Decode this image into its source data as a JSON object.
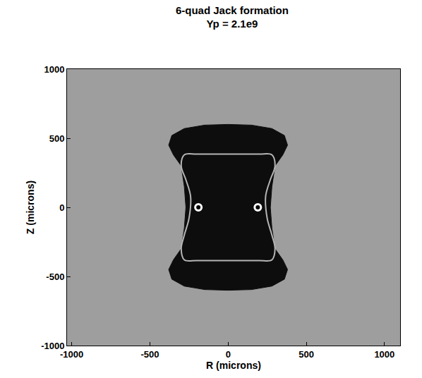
{
  "chart_data": {
    "type": "scatter",
    "title": "6-quad Jack formation",
    "subtitle": "Yp = 2.1e9",
    "x_label": "R (microns)",
    "y_label": "Z (microns)",
    "xlim": [
      -1030,
      1100
    ],
    "ylim": [
      -1000,
      1000
    ],
    "xticks": [
      -1000,
      -500,
      0,
      500,
      1000
    ],
    "yticks": [
      -1000,
      -500,
      0,
      500,
      1000
    ],
    "grid": false,
    "series": [
      {
        "type": "area",
        "color": "#0d0d0d",
        "x": [
          0,
          150,
          280,
          360,
          380,
          350,
          300,
          280,
          270,
          280,
          300,
          350,
          380,
          360,
          280,
          150,
          0,
          -150,
          -280,
          -360,
          -380,
          -350,
          -300,
          -280,
          -270,
          -280,
          -300,
          -350,
          -380,
          -360,
          -280,
          -150,
          0
        ],
        "values": [
          600,
          595,
          570,
          520,
          450,
          380,
          300,
          150,
          0,
          -150,
          -300,
          -380,
          -450,
          -520,
          -570,
          -595,
          -600,
          -595,
          -570,
          -520,
          -450,
          -380,
          -300,
          -150,
          0,
          150,
          300,
          380,
          450,
          520,
          570,
          595,
          600
        ]
      },
      {
        "type": "line",
        "color": "#b5b5b5",
        "x": [
          -280,
          -200,
          0,
          200,
          280,
          300,
          270,
          240,
          250,
          280,
          300,
          280,
          200,
          0,
          -200,
          -280,
          -300,
          -280,
          -250,
          -240,
          -270,
          -300,
          -280
        ],
        "values": [
          380,
          385,
          385,
          385,
          380,
          300,
          200,
          80,
          -80,
          -200,
          -300,
          -380,
          -385,
          -385,
          -385,
          -380,
          -300,
          -200,
          -80,
          80,
          200,
          300,
          380
        ]
      },
      {
        "type": "scatter",
        "color": "#ffffff",
        "marker": "circle",
        "x": [
          -190,
          190
        ],
        "values": [
          0,
          0
        ]
      }
    ]
  }
}
